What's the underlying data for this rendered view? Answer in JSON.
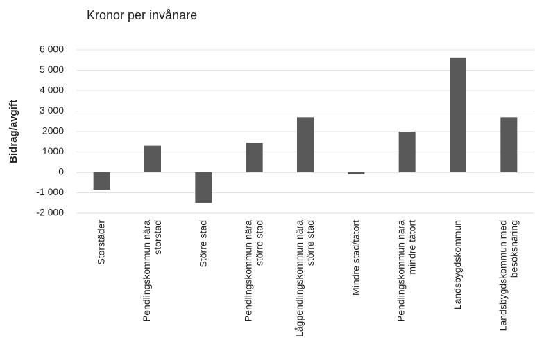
{
  "chart_data": {
    "type": "bar",
    "title": "Kronor per invånare",
    "y_label": "Bidrag/avgift",
    "categories": [
      "Storstäder",
      "Pendlingskommun nära storstad",
      "Större stad",
      "Pendlingskommun nära större stad",
      "Lågpendlingskommun nära större stad",
      "Mindre stad/tätort",
      "Pendlingskommun nära mindre tätort",
      "Landsbygdskommun",
      "Landsbygdskommun med besöksnäring"
    ],
    "values": [
      -850,
      1300,
      -1500,
      1450,
      2700,
      -100,
      2000,
      5600,
      2700
    ],
    "color": "#595959",
    "ylim": [
      -2000,
      6000
    ],
    "yticks": [
      {
        "value": -2000,
        "label": "-2 000"
      },
      {
        "value": -1000,
        "label": "-1 000"
      },
      0,
      {
        "value": 1000,
        "label": "1000"
      },
      {
        "value": 2000,
        "label": "2000"
      },
      {
        "value": 3000,
        "label": "3 000"
      },
      {
        "value": 4000,
        "label": "4 000"
      },
      {
        "value": 5000,
        "label": "5 000"
      },
      {
        "value": 6000,
        "label": "6 000"
      }
    ],
    "grid": true
  }
}
